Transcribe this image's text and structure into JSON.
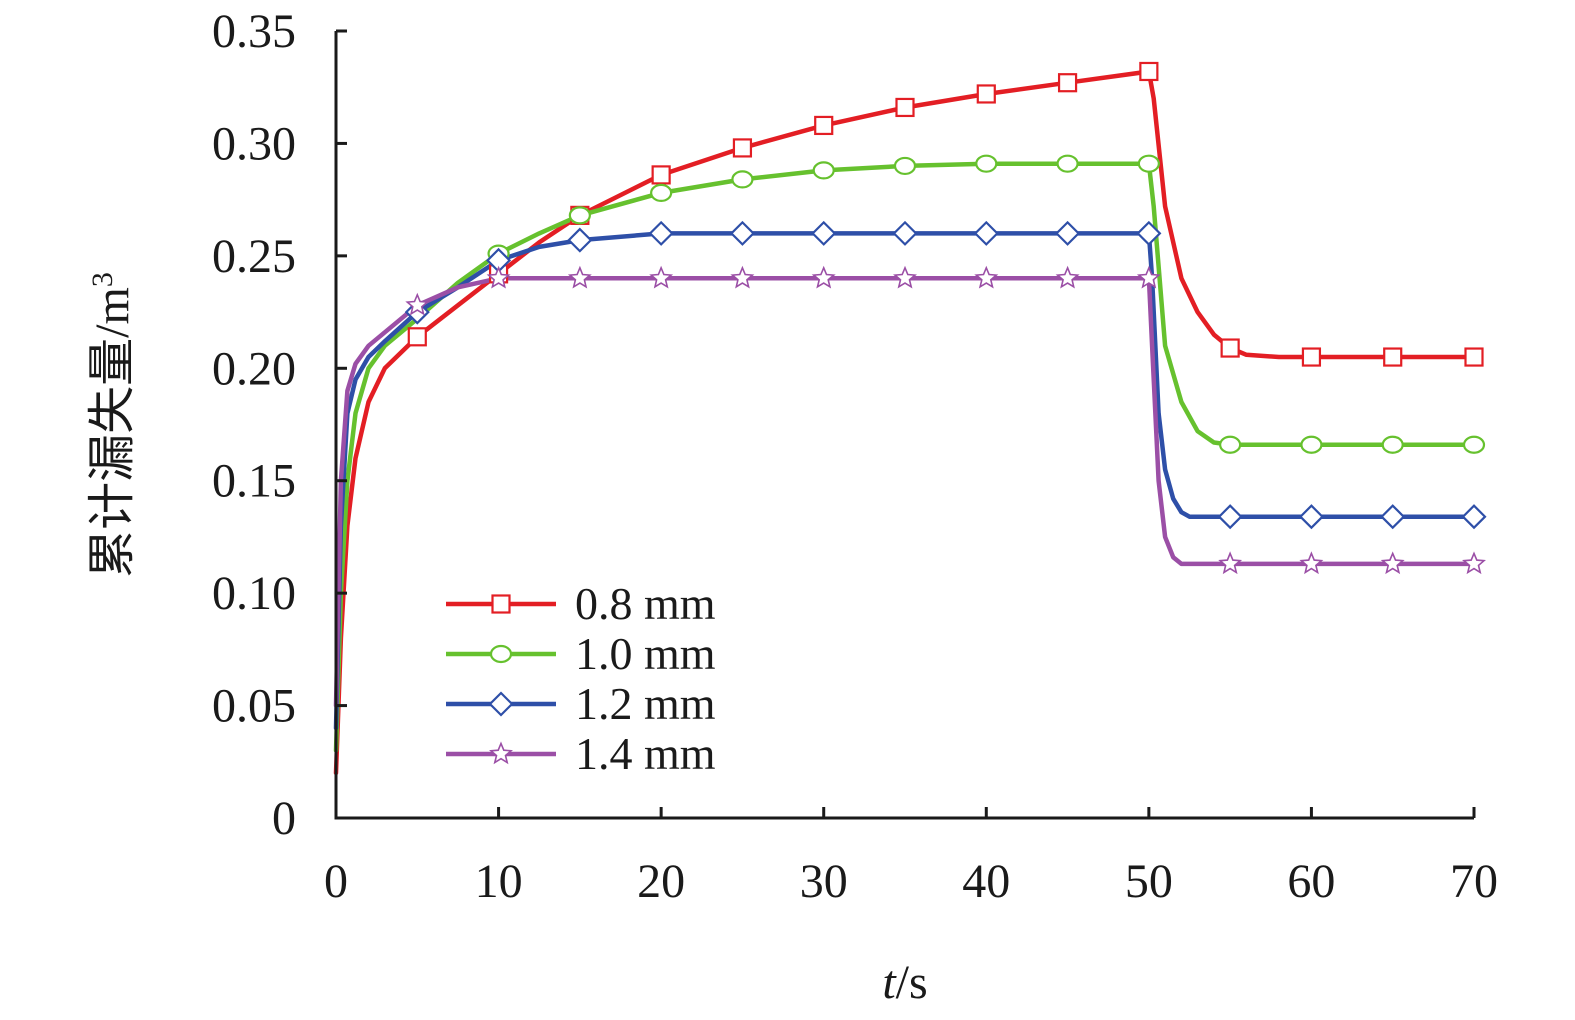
{
  "chart_data": {
    "type": "line",
    "xlabel_italic": "t",
    "xlabel_unit": "/s",
    "ylabel": "累计漏失量/m",
    "ylabel_sup": "3",
    "xlim": [
      0,
      70
    ],
    "ylim": [
      0,
      0.35
    ],
    "x_ticks": [
      0,
      10,
      20,
      30,
      40,
      50,
      60,
      70
    ],
    "x_tick_labels": [
      "0",
      "10",
      "20",
      "30",
      "40",
      "50",
      "60",
      "70"
    ],
    "y_ticks": [
      0,
      0.05,
      0.1,
      0.15,
      0.2,
      0.25,
      0.3,
      0.35
    ],
    "y_tick_labels": [
      "0",
      "0.05",
      "0.10",
      "0.15",
      "0.20",
      "0.25",
      "0.30",
      "0.35"
    ],
    "grid": false,
    "legend_position": "lower-left",
    "series": [
      {
        "name": "0.8 mm",
        "color": "#e31e24",
        "marker": "square",
        "x": [
          0,
          0.3,
          0.7,
          1.2,
          2,
          3,
          5,
          7.5,
          10,
          12.5,
          15,
          20,
          25,
          30,
          35,
          40,
          45,
          50,
          50.3,
          51,
          52,
          53,
          54,
          55,
          56,
          58,
          60,
          65,
          70
        ],
        "y": [
          0.02,
          0.08,
          0.13,
          0.16,
          0.185,
          0.2,
          0.214,
          0.228,
          0.242,
          0.256,
          0.268,
          0.286,
          0.298,
          0.308,
          0.316,
          0.322,
          0.327,
          0.332,
          0.32,
          0.272,
          0.24,
          0.225,
          0.215,
          0.209,
          0.206,
          0.205,
          0.205,
          0.205,
          0.205
        ]
      },
      {
        "name": "1.0 mm",
        "color": "#66c12e",
        "marker": "circle",
        "x": [
          0,
          0.3,
          0.7,
          1.2,
          2,
          3,
          5,
          7.5,
          10,
          12.5,
          15,
          20,
          25,
          30,
          35,
          40,
          45,
          50,
          50.3,
          51,
          52,
          53,
          54,
          55,
          60,
          65,
          70
        ],
        "y": [
          0.03,
          0.1,
          0.15,
          0.18,
          0.2,
          0.21,
          0.222,
          0.238,
          0.251,
          0.26,
          0.268,
          0.278,
          0.284,
          0.288,
          0.29,
          0.291,
          0.291,
          0.291,
          0.272,
          0.21,
          0.185,
          0.172,
          0.167,
          0.166,
          0.166,
          0.166,
          0.166
        ]
      },
      {
        "name": "1.2 mm",
        "color": "#2e4fa8",
        "marker": "diamond",
        "x": [
          0,
          0.3,
          0.7,
          1.2,
          2,
          3,
          5,
          7.5,
          10,
          12.5,
          15,
          20,
          25,
          30,
          35,
          40,
          45,
          50,
          50.2,
          50.6,
          51,
          51.5,
          52,
          52.5,
          55,
          60,
          65,
          70
        ],
        "y": [
          0.04,
          0.13,
          0.18,
          0.195,
          0.205,
          0.212,
          0.225,
          0.236,
          0.248,
          0.254,
          0.257,
          0.26,
          0.26,
          0.26,
          0.26,
          0.26,
          0.26,
          0.26,
          0.24,
          0.18,
          0.155,
          0.142,
          0.136,
          0.134,
          0.134,
          0.134,
          0.134,
          0.134
        ]
      },
      {
        "name": "1.4 mm",
        "color": "#9b4fa6",
        "marker": "star",
        "x": [
          0,
          0.3,
          0.7,
          1.2,
          2,
          3,
          5,
          7.5,
          10,
          12.5,
          15,
          20,
          25,
          30,
          35,
          40,
          45,
          50,
          50.2,
          50.6,
          51,
          51.5,
          52,
          55,
          60,
          65,
          70
        ],
        "y": [
          0.05,
          0.15,
          0.19,
          0.202,
          0.21,
          0.216,
          0.228,
          0.236,
          0.24,
          0.24,
          0.24,
          0.24,
          0.24,
          0.24,
          0.24,
          0.24,
          0.24,
          0.24,
          0.21,
          0.15,
          0.125,
          0.116,
          0.113,
          0.113,
          0.113,
          0.113,
          0.113
        ]
      }
    ],
    "marker_x": [
      [
        5,
        10,
        15,
        20,
        25,
        30,
        35,
        40,
        45,
        50,
        55,
        60,
        65,
        70
      ],
      [
        10,
        15,
        20,
        25,
        30,
        35,
        40,
        45,
        50,
        55,
        60,
        65,
        70
      ],
      [
        5,
        10,
        15,
        20,
        25,
        30,
        35,
        40,
        45,
        50,
        55,
        60,
        65,
        70
      ],
      [
        5,
        10,
        15,
        20,
        25,
        30,
        35,
        40,
        45,
        50,
        55,
        60,
        65,
        70
      ]
    ]
  }
}
